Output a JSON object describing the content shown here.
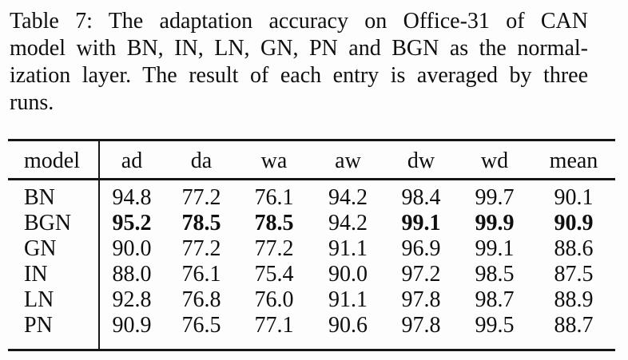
{
  "colors": {
    "background": "#fdfdfd",
    "text": "#0e0e0e",
    "rule": "#161616"
  },
  "caption": {
    "lines": [
      "Table 7: The adaptation accuracy on Office-31 of CAN",
      "model with BN, IN, LN, GN, PN and BGN as the normal-",
      "ization layer. The result of each entry is averaged by three",
      "runs."
    ]
  },
  "table": {
    "columns": [
      "model",
      "ad",
      "da",
      "wa",
      "aw",
      "dw",
      "wd",
      "mean"
    ],
    "rows": [
      {
        "model": "BN",
        "values": [
          "94.8",
          "77.2",
          "76.1",
          "94.2",
          "98.4",
          "99.7",
          "90.1"
        ],
        "bold": [
          false,
          false,
          false,
          false,
          false,
          false,
          false
        ]
      },
      {
        "model": "BGN",
        "values": [
          "95.2",
          "78.5",
          "78.5",
          "94.2",
          "99.1",
          "99.9",
          "90.9"
        ],
        "bold": [
          true,
          true,
          true,
          false,
          true,
          true,
          true
        ]
      },
      {
        "model": "GN",
        "values": [
          "90.0",
          "77.2",
          "77.2",
          "91.1",
          "96.9",
          "99.1",
          "88.6"
        ],
        "bold": [
          false,
          false,
          false,
          false,
          false,
          false,
          false
        ]
      },
      {
        "model": "IN",
        "values": [
          "88.0",
          "76.1",
          "75.4",
          "90.0",
          "97.2",
          "98.5",
          "87.5"
        ],
        "bold": [
          false,
          false,
          false,
          false,
          false,
          false,
          false
        ]
      },
      {
        "model": "LN",
        "values": [
          "92.8",
          "76.8",
          "76.0",
          "91.1",
          "97.8",
          "98.7",
          "88.9"
        ],
        "bold": [
          false,
          false,
          false,
          false,
          false,
          false,
          false
        ]
      },
      {
        "model": "PN",
        "values": [
          "90.9",
          "76.5",
          "77.1",
          "90.6",
          "97.8",
          "99.5",
          "88.7"
        ],
        "bold": [
          false,
          false,
          false,
          false,
          false,
          false,
          false
        ]
      }
    ]
  }
}
